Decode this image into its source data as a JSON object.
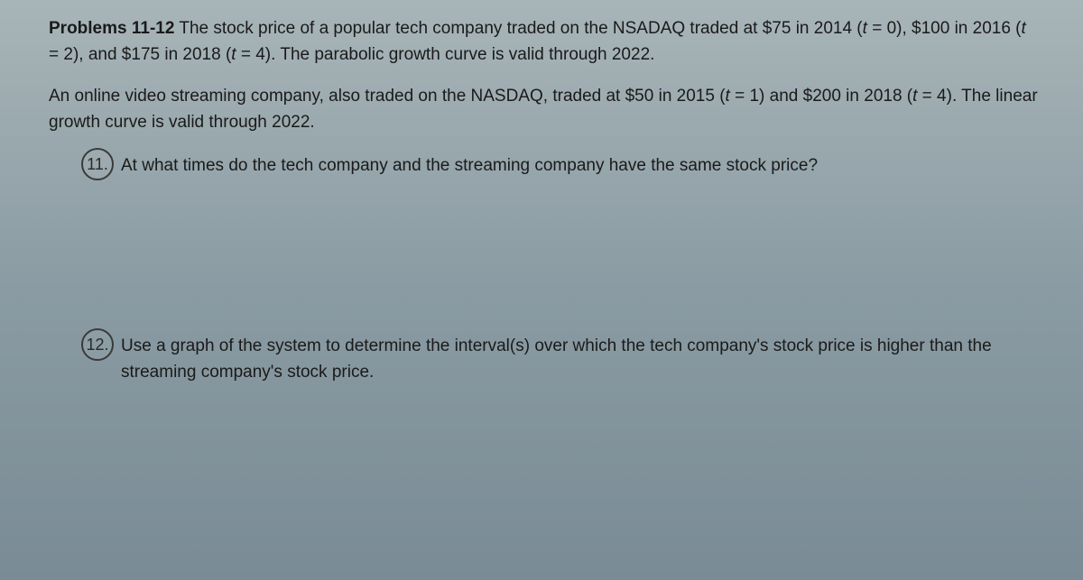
{
  "heading": "Problems 11-12",
  "intro_p1_a": " The stock price of a popular tech company traded on the NSADAQ traded at $75 in 2014 (",
  "intro_p1_t0": "t",
  "intro_p1_b": " = 0), $100 in 2016 (",
  "intro_p1_t1": "t",
  "intro_p1_c": " = 2), and $175 in 2018 (",
  "intro_p1_t2": "t",
  "intro_p1_d": " = 4). The parabolic growth curve is valid through 2022.",
  "intro_p2_a": "An online video streaming company, also traded on the NASDAQ, traded at $50 in 2015 (",
  "intro_p2_t0": "t",
  "intro_p2_b": " = 1) and $200 in 2018 (",
  "intro_p2_t1": "t",
  "intro_p2_c": " = 4). The linear growth curve is valid through 2022.",
  "q11_num": "11.",
  "q11_text": "At what times do the tech company and the streaming company have the same stock price?",
  "q12_num": "12.",
  "q12_text": "Use a graph of the system to determine the interval(s) over which the tech company's stock price is higher than the streaming company's stock price."
}
